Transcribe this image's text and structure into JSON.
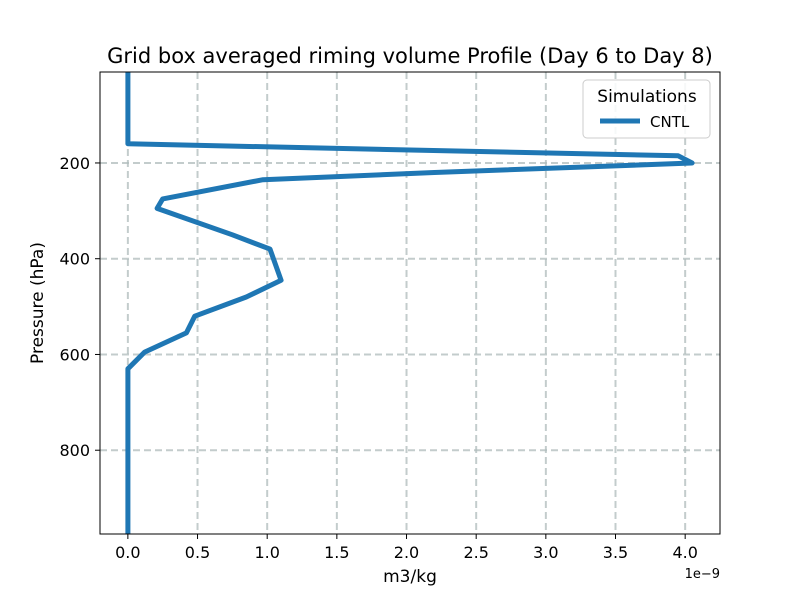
{
  "chart_data": {
    "type": "line",
    "title": "Grid box averaged riming volume Profile (Day 6 to Day 8)",
    "xlabel": "m3/kg",
    "ylabel": "Pressure (hPa)",
    "x_scale_label": "1e−9",
    "x_scale": 1e-09,
    "xlim": [
      -0.2,
      4.25
    ],
    "ylim": [
      975,
      10
    ],
    "y_inverted": true,
    "x_ticks": [
      0.0,
      0.5,
      1.0,
      1.5,
      2.0,
      2.5,
      3.0,
      3.5,
      4.0
    ],
    "x_tick_labels": [
      "0.0",
      "0.5",
      "1.0",
      "1.5",
      "2.0",
      "2.5",
      "3.0",
      "3.5",
      "4.0"
    ],
    "y_ticks": [
      200,
      400,
      600,
      800
    ],
    "y_tick_labels": [
      "200",
      "400",
      "600",
      "800"
    ],
    "grid": true,
    "grid_style": "dashed",
    "legend": {
      "title": "Simulations",
      "position": "top-right"
    },
    "series": [
      {
        "name": "CNTL",
        "color": "#1f77b4",
        "x": [
          0.0,
          0.0,
          3.95,
          4.05,
          2.2,
          0.97,
          0.25,
          0.21,
          0.75,
          1.02,
          1.1,
          0.85,
          0.48,
          0.42,
          0.12,
          0.0,
          0.0
        ],
        "y": [
          10,
          160,
          185,
          200,
          220,
          235,
          275,
          295,
          350,
          380,
          445,
          480,
          520,
          555,
          595,
          630,
          975
        ]
      }
    ]
  }
}
